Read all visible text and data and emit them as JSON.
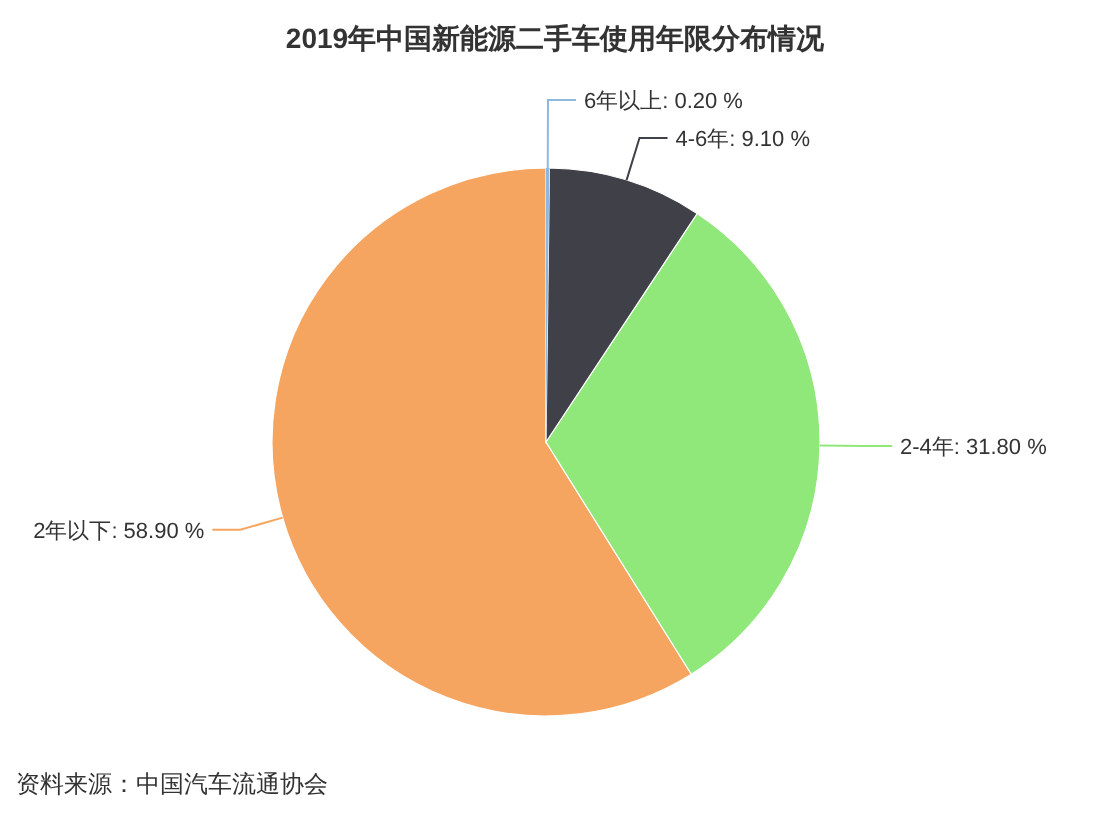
{
  "chart_data": {
    "type": "pie",
    "title": "2019年中国新能源二手车使用年限分布情况",
    "categories": [
      "6年以上",
      "4-6年",
      "2-4年",
      "2年以下"
    ],
    "values": [
      0.2,
      9.1,
      31.8,
      58.9
    ],
    "colors": [
      "#8fb8e0",
      "#404048",
      "#90e87a",
      "#f5a55f"
    ],
    "value_labels": [
      "0.20 %",
      "9.10 %",
      "31.80 %",
      "58.90 %"
    ],
    "annotations": [
      "资料来源：中国汽车流通协会"
    ]
  }
}
